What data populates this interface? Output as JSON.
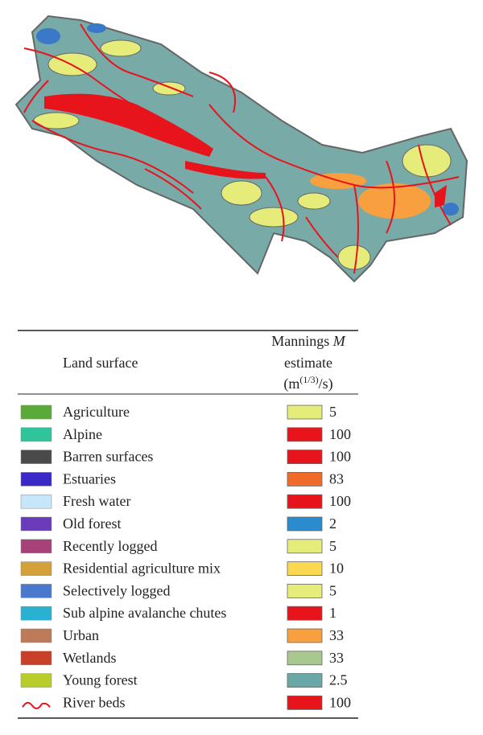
{
  "table": {
    "header": {
      "land_surface": "Land surface",
      "line1": "Mannings",
      "symbol": "M",
      "line2": "estimate",
      "unit_open": "(m",
      "unit_exp": "(1/3)",
      "unit_close": "/s)"
    },
    "rows": [
      {
        "label": "Agriculture",
        "color": "#5aaa3a",
        "value": 5,
        "value_color": "#e6ec7a"
      },
      {
        "label": "Alpine",
        "color": "#2fc49a",
        "value": 100,
        "value_color": "#e8141c"
      },
      {
        "label": "Barren surfaces",
        "color": "#4a4a4a",
        "value": 100,
        "value_color": "#e8141c"
      },
      {
        "label": "Estuaries",
        "color": "#3a28c8",
        "value": 83,
        "value_color": "#f06a2a"
      },
      {
        "label": "Fresh water",
        "color": "#c8e6fa",
        "value": 100,
        "value_color": "#e8141c"
      },
      {
        "label": "Old forest",
        "color": "#6a3cbc",
        "value": 2,
        "value_color": "#2a8ccc"
      },
      {
        "label": "Recently logged",
        "color": "#a8407a",
        "value": 5,
        "value_color": "#e6ec7a"
      },
      {
        "label": "Residential agriculture mix",
        "color": "#d4a03a",
        "value": 10,
        "value_color": "#fcd850"
      },
      {
        "label": "Selectively logged",
        "color": "#4a78cc",
        "value": 5,
        "value_color": "#e6ec7a"
      },
      {
        "label": "Sub alpine avalanche chutes",
        "color": "#2ab0d0",
        "value": 1,
        "value_color": "#e8141c"
      },
      {
        "label": "Urban",
        "color": "#bc7a58",
        "value": 33,
        "value_color": "#f8a040"
      },
      {
        "label": "Wetlands",
        "color": "#c84028",
        "value": 33,
        "value_color": "#a8c890"
      },
      {
        "label": "Young forest",
        "color": "#b8cc2a",
        "value": 2.5,
        "value_color": "#6aa8a8"
      },
      {
        "label": "River beds",
        "color": "#e8141c",
        "value": 100,
        "value_color": "#e8141c",
        "icon": "river"
      }
    ]
  }
}
